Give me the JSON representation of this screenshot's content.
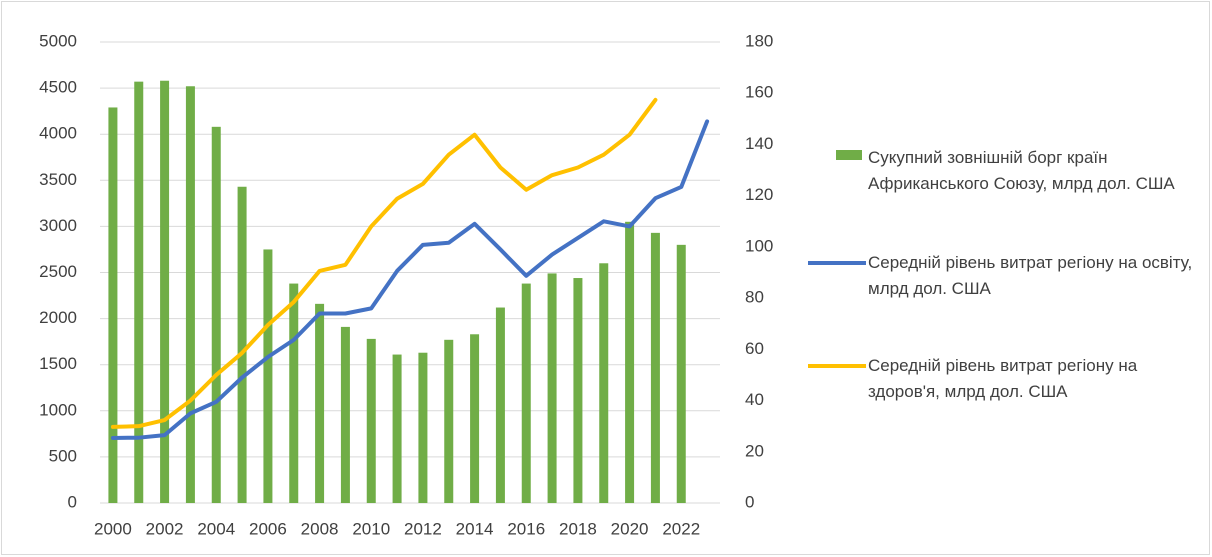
{
  "chart_data": {
    "type": "bar_line",
    "categories": [
      "2000",
      null,
      "2002",
      null,
      "2004",
      null,
      "2006",
      null,
      "2008",
      null,
      "2010",
      null,
      "2012",
      null,
      "2014",
      null,
      "2016",
      null,
      "2018",
      null,
      "2020",
      null,
      "2022",
      null
    ],
    "series": [
      {
        "name": "Сукупний зовнішній борг країн Африканського Союзу, млрд дол. США",
        "type": "bar",
        "color": "#70ad47",
        "values": [
          4290,
          4570,
          4580,
          4520,
          4080,
          3430,
          2750,
          2380,
          2160,
          1910,
          1780,
          1610,
          1630,
          1770,
          1830,
          2120,
          2380,
          2490,
          2440,
          2600,
          3050,
          2930,
          2800,
          null
        ]
      },
      {
        "name": "Середній рівень витрат регіону на освіту, млрд дол. США",
        "type": "line",
        "axis": "y2",
        "color": "#4472c4",
        "values": [
          25.4,
          25.5,
          26.5,
          35,
          39.5,
          49,
          57,
          63.7,
          74,
          74,
          76,
          90.6,
          100.8,
          101.6,
          109,
          99,
          88.7,
          97,
          103.5,
          110,
          108,
          119,
          123.4,
          149
        ]
      },
      {
        "name": "Середній рівень витрат регіону на здоров'я, млрд дол. США",
        "type": "line",
        "axis": "y2",
        "color": "#ffc000",
        "values": [
          29.7,
          30,
          32.4,
          40,
          50,
          58.6,
          69.5,
          78.5,
          90.6,
          93,
          108,
          118.8,
          124.6,
          136,
          143.8,
          131,
          122.3,
          128,
          131,
          136,
          143.8,
          157.4,
          null,
          null
        ]
      }
    ],
    "ylim": [
      0,
      5000
    ],
    "yticks": [
      0,
      500,
      1000,
      1500,
      2000,
      2500,
      3000,
      3500,
      4000,
      4500,
      5000
    ],
    "y2lim": [
      0,
      180
    ],
    "y2ticks": [
      0,
      20,
      40,
      60,
      80,
      100,
      120,
      140,
      160,
      180
    ],
    "grid": true,
    "legend": "right"
  }
}
